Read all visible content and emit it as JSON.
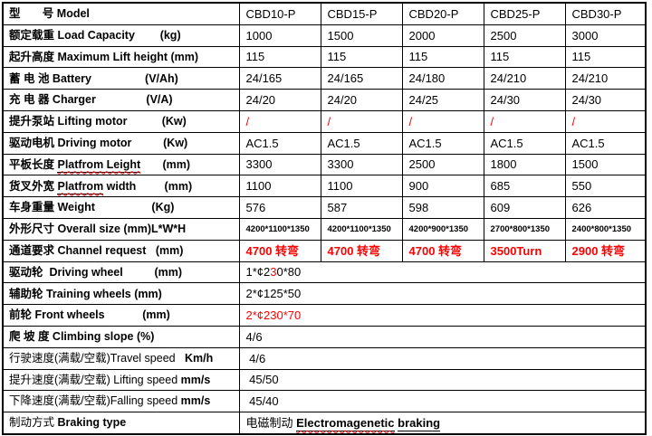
{
  "colors": {
    "accent_red": "#ff0000",
    "border": "#000000",
    "text": "#000000",
    "background": "#ffffff"
  },
  "table": {
    "models": [
      "CBD10-P",
      "CBD15-P",
      "CBD20-P",
      "CBD25-P",
      "CBD30-P"
    ],
    "rows": [
      {
        "name": "model",
        "label": [
          {
            "t": "型       号 Model",
            "c": "b"
          }
        ],
        "cells": [
          "CBD10-P",
          "CBD15-P",
          "CBD20-P",
          "CBD25-P",
          "CBD30-P"
        ],
        "cell_cls": ""
      },
      {
        "name": "load-capacity",
        "label": [
          {
            "t": "额定载重 Load Capacity        (kg)",
            "c": "b"
          }
        ],
        "cells": [
          "1000",
          "1500",
          "2000",
          "2500",
          "3000"
        ],
        "cell_cls": ""
      },
      {
        "name": "lift-height",
        "label": [
          {
            "t": "起升高度 Maximum Lift height (mm)",
            "c": "b"
          }
        ],
        "cells": [
          "115",
          "115",
          "115",
          "115",
          "115"
        ],
        "cell_cls": ""
      },
      {
        "name": "battery",
        "label": [
          {
            "t": "蓄 电 池 Battery                 (V/Ah)",
            "c": "b"
          }
        ],
        "cells": [
          "24/165",
          "24/165",
          "24/180",
          "24/210",
          "24/210"
        ],
        "cell_cls": ""
      },
      {
        "name": "charger",
        "label": [
          {
            "t": "充 电 器 Charger                (V/A)",
            "c": "b"
          }
        ],
        "cells": [
          "24/20",
          "24/20",
          "24/25",
          "24/30",
          "24/30"
        ],
        "cell_cls": ""
      },
      {
        "name": "lifting-motor",
        "label": [
          {
            "t": "提升泵站 Lifting motor           (Kw)",
            "c": "b"
          }
        ],
        "cells": [
          "/",
          "/",
          "/",
          "/",
          "/"
        ],
        "cell_cls": "rr"
      },
      {
        "name": "driving-motor",
        "label": [
          {
            "t": "驱动电机 Driving motor          (Kw)",
            "c": "b"
          }
        ],
        "cells": [
          "AC1.5",
          "AC1.5",
          "AC1.5",
          "AC1.5",
          "AC1.5"
        ],
        "cell_cls": ""
      },
      {
        "name": "platform-length",
        "label": [
          {
            "t": "平板长度 ",
            "c": "b"
          },
          {
            "t": "Platfrom Leight",
            "c": "b u w"
          },
          {
            "t": "       (mm)",
            "c": "b"
          }
        ],
        "cells": [
          "3300",
          "3300",
          "2500",
          "1800",
          "1500"
        ],
        "cell_cls": ""
      },
      {
        "name": "platform-width",
        "label": [
          {
            "t": "货叉外宽 ",
            "c": "b"
          },
          {
            "t": "Platfrom",
            "c": "b u w"
          },
          {
            "t": " width         (mm)",
            "c": "b"
          }
        ],
        "cells": [
          "1100",
          "1100",
          "900",
          "685",
          "550"
        ],
        "cell_cls": ""
      },
      {
        "name": "weight",
        "label": [
          {
            "t": "车身重量 Weight                  (Kg)",
            "c": "b"
          }
        ],
        "cells": [
          "576",
          "587",
          "598",
          "609",
          "626"
        ],
        "cell_cls": ""
      },
      {
        "name": "overall-size",
        "label": [
          {
            "t": "外形尺寸 Overall size (mm)L*W*H",
            "c": "b"
          }
        ],
        "cells": [
          "4200*1100*1350",
          "4200*1100*1350",
          "4200*900*1350",
          "2700*800*1350",
          "2400*800*1350"
        ],
        "cell_cls": "sm"
      },
      {
        "name": "channel-request",
        "label": [
          {
            "t": "通道要求 Channel request   (mm)",
            "c": "b"
          }
        ],
        "cells": [
          "4700 转弯",
          "4700 转弯",
          "4700 转弯",
          "3500Turn",
          "2900 转弯"
        ],
        "cell_cls": "rb"
      },
      {
        "name": "driving-wheel",
        "label": [
          {
            "t": "驱动轮  Driving wheel          (mm)",
            "c": "b"
          }
        ],
        "span": [
          {
            "t": "1*¢2",
            "c": ""
          },
          {
            "t": "3",
            "c": "r"
          },
          {
            "t": "0*80",
            "c": ""
          }
        ]
      },
      {
        "name": "training-wheels",
        "label": [
          {
            "t": "辅助轮 Training wheels (mm)",
            "c": "b"
          }
        ],
        "span": [
          {
            "t": "2*¢125*50",
            "c": ""
          }
        ]
      },
      {
        "name": "front-wheels",
        "label": [
          {
            "t": "前轮 Front wheels            (mm)",
            "c": "b"
          }
        ],
        "span": [
          {
            "t": "2*¢230*70",
            "c": "r"
          }
        ]
      },
      {
        "name": "climbing-slope",
        "label": [
          {
            "t": "爬 坡 度 Climbing slope (%)",
            "c": "b"
          }
        ],
        "span": [
          {
            "t": "4/6",
            "c": ""
          }
        ]
      },
      {
        "name": "travel-speed",
        "label": [
          {
            "t": "行驶速度(满载/空载)Travel speed   ",
            "c": ""
          },
          {
            "t": "Km/h",
            "c": "b"
          }
        ],
        "span": [
          {
            "t": " 4/6",
            "c": ""
          }
        ]
      },
      {
        "name": "lifting-speed",
        "label": [
          {
            "t": "提升速度(满载/空载) Lifting speed ",
            "c": ""
          },
          {
            "t": "mm/s",
            "c": "b"
          }
        ],
        "span": [
          {
            "t": " 45/50",
            "c": ""
          }
        ]
      },
      {
        "name": "falling-speed",
        "label": [
          {
            "t": "下降速度(满载/空载)Falling speed ",
            "c": ""
          },
          {
            "t": "mm/s",
            "c": "b"
          }
        ],
        "span": [
          {
            "t": " 45/40",
            "c": ""
          }
        ]
      },
      {
        "name": "braking-type",
        "label": [
          {
            "t": "制动方式 ",
            "c": ""
          },
          {
            "t": "Braking type",
            "c": "b"
          }
        ],
        "span": [
          {
            "t": "电磁制动 ",
            "c": ""
          },
          {
            "t": "Electromagenetic",
            "c": "b u w"
          },
          {
            "t": " ",
            "c": "b"
          },
          {
            "t": "braking",
            "c": "b u"
          }
        ]
      }
    ]
  }
}
